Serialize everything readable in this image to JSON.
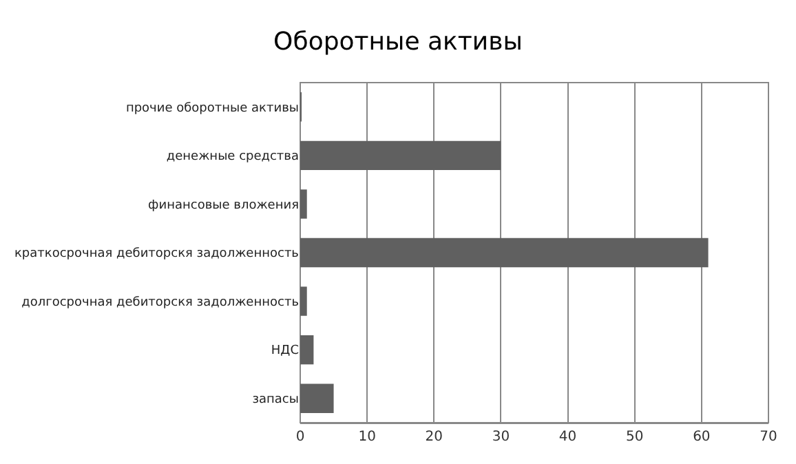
{
  "chart_data": {
    "type": "bar",
    "orientation": "horizontal",
    "title": "Оборотные активы",
    "categories": [
      "прочие оборотные активы",
      "денежные средства",
      "финансовые вложения",
      "краткосрочная дебиторскя задолженность",
      "долгосрочная дебиторскя задолженность",
      "НДС",
      "запасы"
    ],
    "values": [
      0.1,
      30,
      1,
      61,
      1,
      2,
      5
    ],
    "color": "#606060",
    "xlim": [
      0,
      70
    ],
    "xticks": [
      0,
      10,
      20,
      30,
      40,
      50,
      60,
      70
    ],
    "grid": "x"
  }
}
